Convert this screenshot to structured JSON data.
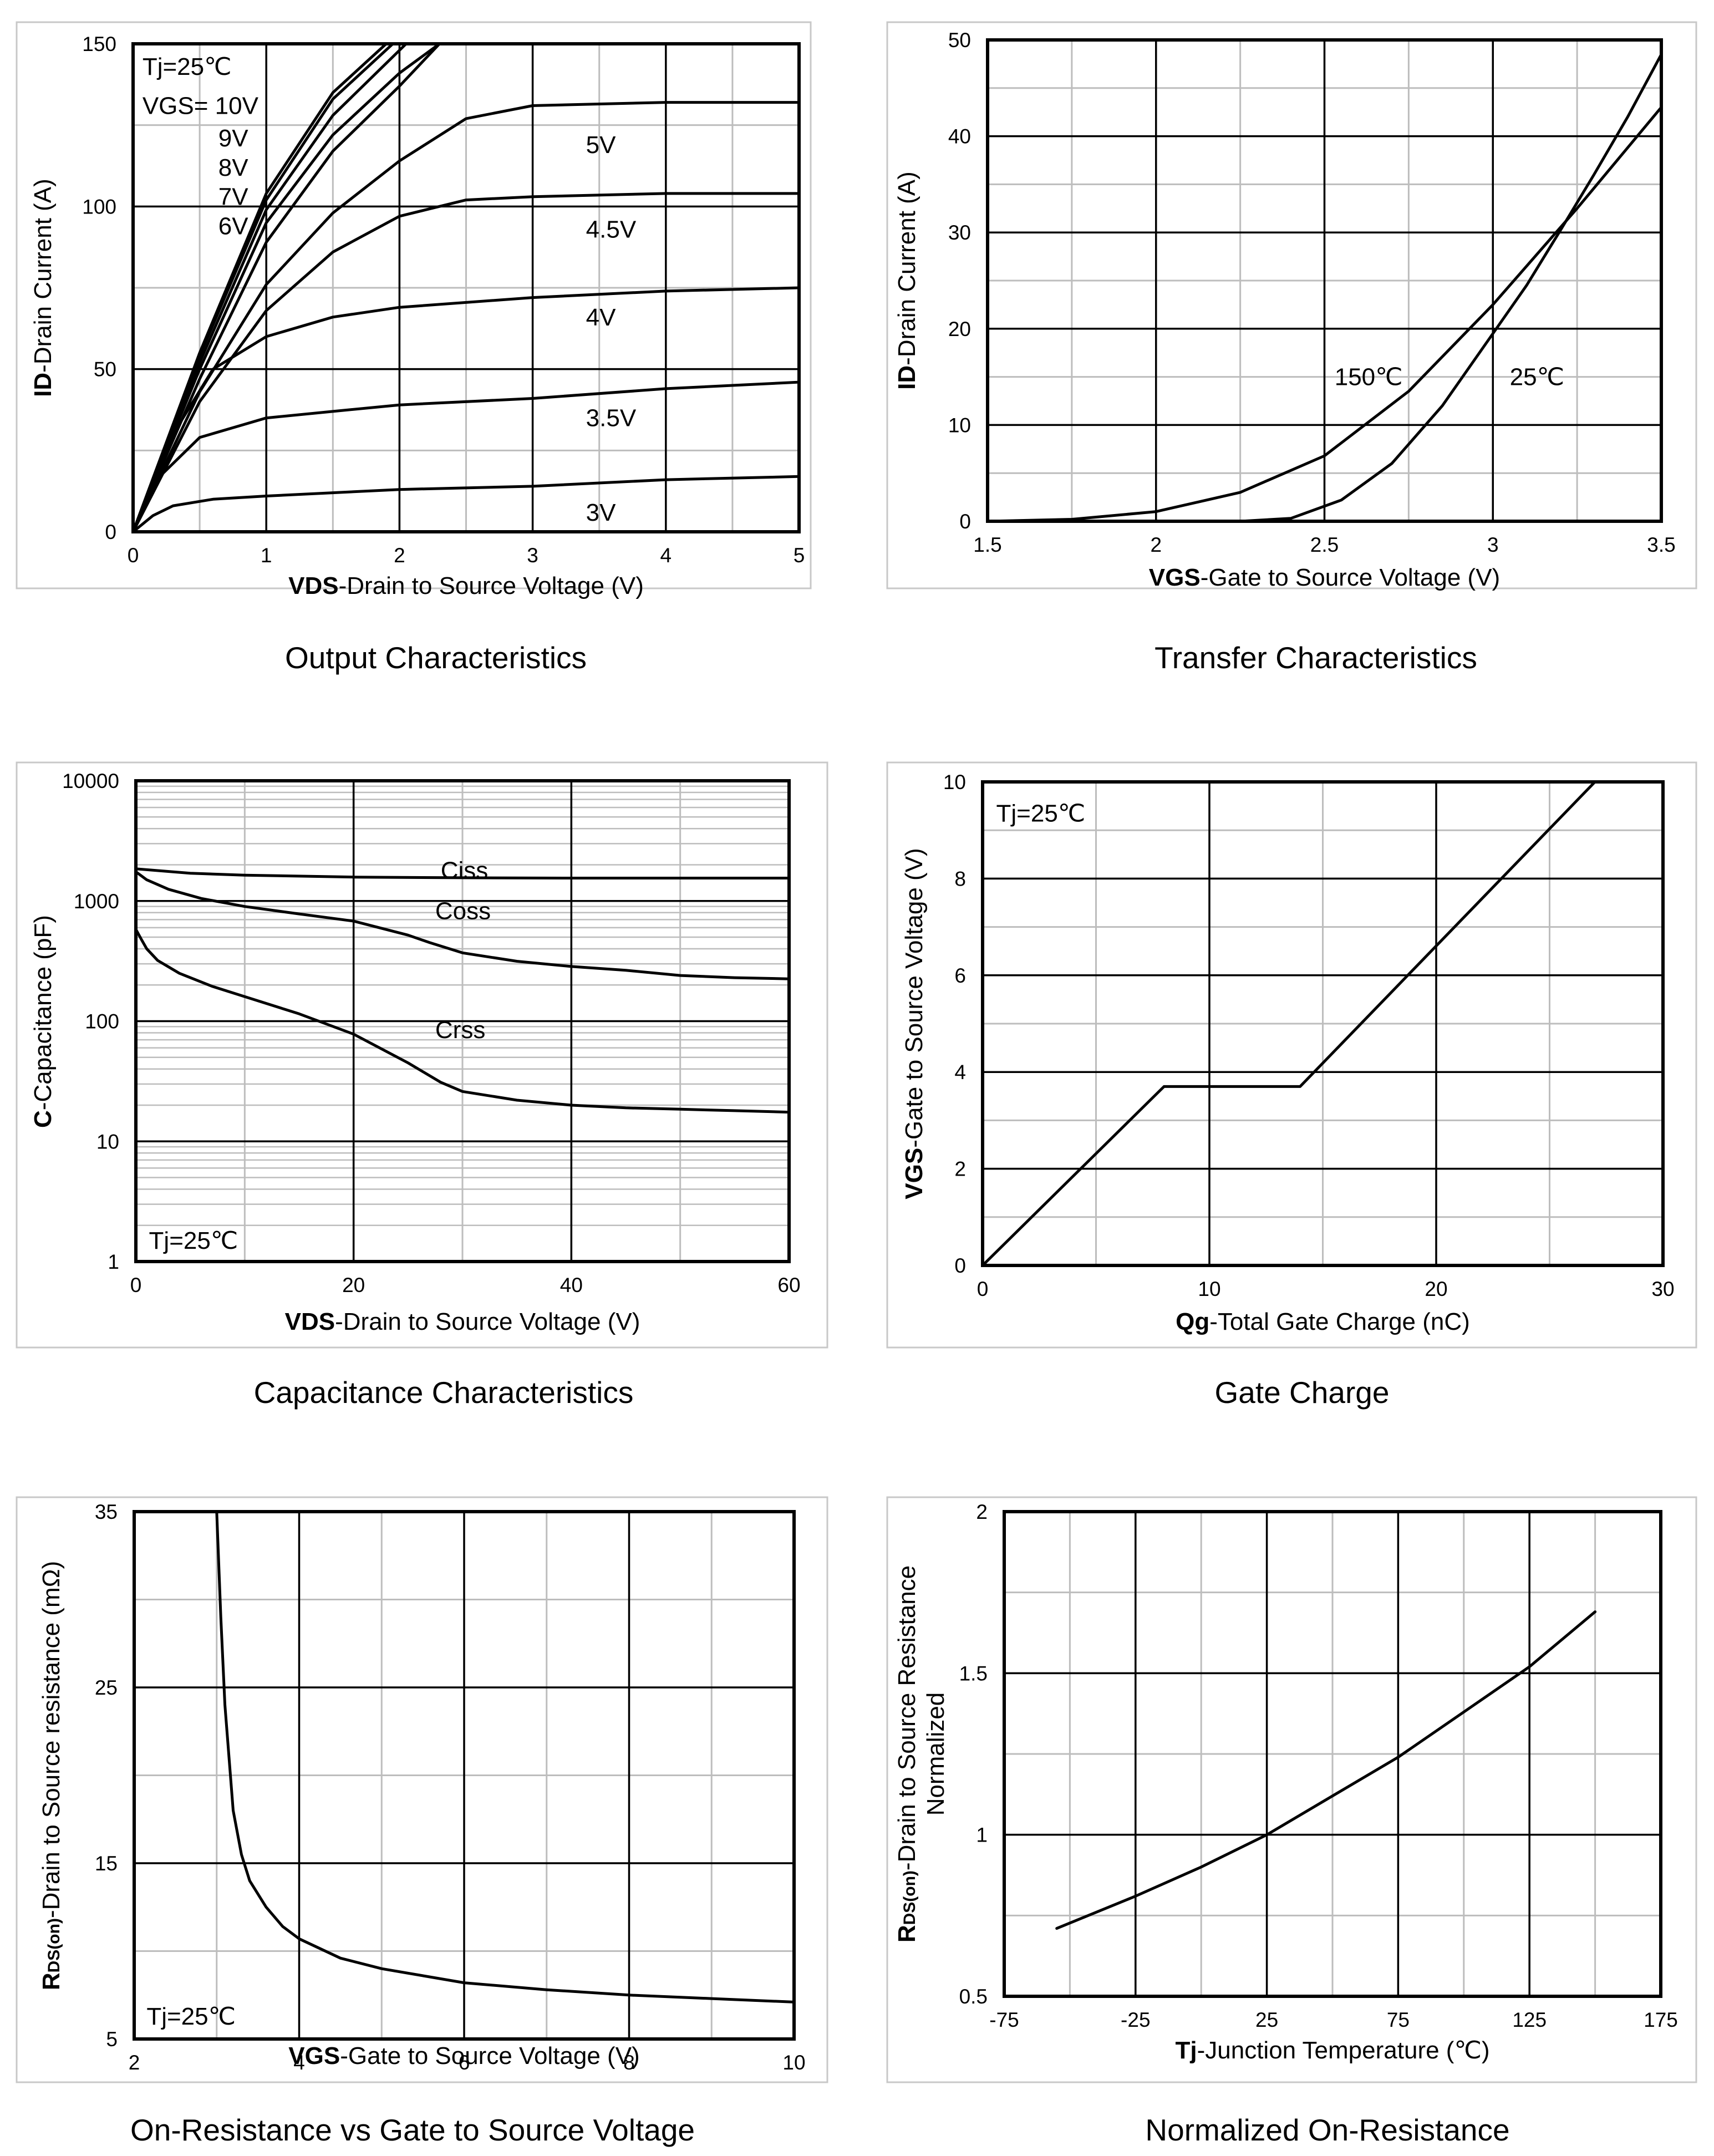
{
  "chart_data": [
    {
      "type": "line",
      "title": "Output Characteristics",
      "xlabel_bold": "VDS",
      "xlabel_rest": "-Drain to Source Voltage (V)",
      "ylabel_bold": "ID",
      "ylabel_rest": "-Drain Current (A)",
      "xlim": [
        0,
        5
      ],
      "ylim": [
        0,
        150
      ],
      "xticks": [
        0,
        1,
        2,
        3,
        4,
        5
      ],
      "yticks": [
        0,
        50,
        100,
        150
      ],
      "xticklabels": [
        "0",
        "1",
        "2",
        "3",
        "4",
        "5"
      ],
      "yticklabels": [
        "0",
        "50",
        "100",
        "150"
      ],
      "grid": true,
      "annotations": [
        {
          "text": "Tj=25℃",
          "x": 0.07,
          "y": 143
        },
        {
          "text": "VGS= 10V",
          "x": 0.07,
          "y": 131
        },
        {
          "text": "9V",
          "x": 0.64,
          "y": 121
        },
        {
          "text": "8V",
          "x": 0.64,
          "y": 112
        },
        {
          "text": "7V",
          "x": 0.64,
          "y": 103
        },
        {
          "text": "6V",
          "x": 0.64,
          "y": 94
        },
        {
          "text": "5V",
          "x": 3.4,
          "y": 119
        },
        {
          "text": "4.5V",
          "x": 3.4,
          "y": 93
        },
        {
          "text": "4V",
          "x": 3.4,
          "y": 66
        },
        {
          "text": "3.5V",
          "x": 3.4,
          "y": 35
        },
        {
          "text": "3V",
          "x": 3.4,
          "y": 6
        }
      ],
      "series": [
        {
          "name": "VGS=10V",
          "x": [
            0,
            0.5,
            1.0,
            1.5,
            1.9
          ],
          "y": [
            0,
            55,
            104,
            135,
            150
          ]
        },
        {
          "name": "VGS=9V",
          "x": [
            0,
            0.5,
            1.0,
            1.5,
            1.95
          ],
          "y": [
            0,
            54,
            102,
            133,
            150
          ]
        },
        {
          "name": "VGS=8V",
          "x": [
            0,
            0.5,
            1.0,
            1.5,
            2.05
          ],
          "y": [
            0,
            52,
            99,
            128,
            150
          ]
        },
        {
          "name": "VGS=7V",
          "x": [
            0,
            0.5,
            1.0,
            1.5,
            2.0,
            2.3
          ],
          "y": [
            0,
            50,
            95,
            122,
            141,
            150
          ]
        },
        {
          "name": "VGS=6V",
          "x": [
            0,
            0.5,
            1.0,
            1.5,
            2.0,
            2.3
          ],
          "y": [
            0,
            47,
            89,
            117,
            137,
            150
          ]
        },
        {
          "name": "VGS=5V",
          "x": [
            0,
            0.5,
            1.0,
            1.5,
            2.0,
            2.5,
            3.0,
            4.0,
            5.0
          ],
          "y": [
            0,
            43,
            76,
            98,
            114,
            127,
            131,
            132,
            132
          ]
        },
        {
          "name": "VGS=4.5V",
          "x": [
            0,
            0.5,
            1.0,
            1.5,
            2.0,
            2.5,
            3.0,
            4.0,
            5.0
          ],
          "y": [
            0,
            40,
            68,
            86,
            97,
            102,
            103,
            104,
            104
          ]
        },
        {
          "name": "VGS=4V",
          "x": [
            0,
            0.3,
            0.6,
            1.0,
            1.5,
            2.0,
            3.0,
            4.0,
            5.0
          ],
          "y": [
            0,
            30,
            50,
            60,
            66,
            69,
            72,
            74,
            75
          ]
        },
        {
          "name": "VGS=3.5V",
          "x": [
            0,
            0.2,
            0.5,
            1.0,
            1.5,
            2.0,
            3.0,
            4.0,
            5.0
          ],
          "y": [
            0,
            17,
            29,
            35,
            37,
            39,
            41,
            44,
            46
          ]
        },
        {
          "name": "VGS=3V",
          "x": [
            0,
            0.15,
            0.3,
            0.6,
            1.0,
            2.0,
            3.0,
            4.0,
            5.0
          ],
          "y": [
            0,
            5,
            8,
            10,
            11,
            13,
            14,
            16,
            17
          ]
        }
      ]
    },
    {
      "type": "line",
      "title": "Transfer Characteristics",
      "xlabel_bold": "VGS",
      "xlabel_rest": "-Gate to Source Voltage (V)",
      "ylabel_bold": "ID",
      "ylabel_rest": "-Drain Current (A)",
      "xlim": [
        1.5,
        3.5
      ],
      "ylim": [
        0,
        50
      ],
      "xticks": [
        1.5,
        2,
        2.5,
        3,
        3.5
      ],
      "yticks": [
        0,
        10,
        20,
        30,
        40,
        50
      ],
      "xticklabels": [
        "1.5",
        "2",
        "2.5",
        "3",
        "3.5"
      ],
      "yticklabels": [
        "0",
        "10",
        "20",
        "30",
        "40",
        "50"
      ],
      "grid": true,
      "annotations": [
        {
          "text": "150℃",
          "x": 2.53,
          "y": 15
        },
        {
          "text": "25℃",
          "x": 3.05,
          "y": 15
        }
      ],
      "series": [
        {
          "name": "150℃",
          "x": [
            1.5,
            1.75,
            2.0,
            2.25,
            2.5,
            2.75,
            3.0,
            3.25,
            3.5
          ],
          "y": [
            0,
            0.2,
            1.0,
            3.0,
            6.8,
            13.5,
            22.5,
            32.5,
            43
          ]
        },
        {
          "name": "25℃",
          "x": [
            1.5,
            2.25,
            2.4,
            2.55,
            2.7,
            2.85,
            3.0,
            3.1,
            3.2,
            3.3,
            3.4,
            3.5
          ],
          "y": [
            0,
            0,
            0.3,
            2.2,
            6.0,
            12.0,
            19.5,
            24.5,
            30.2,
            36.0,
            42.0,
            48.5
          ]
        }
      ]
    },
    {
      "type": "line",
      "title": "Capacitance Characteristics",
      "xlabel_bold": "VDS",
      "xlabel_rest": "-Drain to Source Voltage (V)",
      "ylabel_bold": "C",
      "ylabel_rest": "-Capacitance (pF)",
      "yscale": "log",
      "xlim": [
        0,
        60
      ],
      "ylim": [
        1,
        10000
      ],
      "xticks": [
        0,
        20,
        40,
        60
      ],
      "yticks": [
        1,
        10,
        100,
        1000,
        10000
      ],
      "xticklabels": [
        "0",
        "20",
        "40",
        "60"
      ],
      "yticklabels": [
        "1",
        "10",
        "100",
        "1000",
        "10000"
      ],
      "grid": true,
      "annotations": [
        {
          "text": "Tj=25℃",
          "x": 1.2,
          "y": 1.5
        },
        {
          "text": "Ciss",
          "x": 28,
          "y": 1800
        },
        {
          "text": "Coss",
          "x": 27.5,
          "y": 830
        },
        {
          "text": "Crss",
          "x": 27.5,
          "y": 85
        }
      ],
      "series": [
        {
          "name": "Ciss",
          "x": [
            0,
            5,
            10,
            20,
            30,
            40,
            50,
            60
          ],
          "y": [
            1850,
            1700,
            1640,
            1580,
            1560,
            1550,
            1550,
            1550
          ]
        },
        {
          "name": "Coss",
          "x": [
            0,
            1,
            3,
            6,
            10,
            15,
            20,
            25,
            27,
            30,
            35,
            40,
            45,
            50,
            55,
            60
          ],
          "y": [
            1750,
            1500,
            1250,
            1050,
            900,
            780,
            680,
            520,
            450,
            370,
            315,
            285,
            265,
            240,
            230,
            225
          ]
        },
        {
          "name": "Crss",
          "x": [
            0,
            0.5,
            1,
            2,
            4,
            7,
            10,
            15,
            20,
            25,
            28,
            30,
            35,
            40,
            45,
            50,
            55,
            60
          ],
          "y": [
            580,
            480,
            400,
            320,
            250,
            195,
            160,
            115,
            78,
            45,
            31,
            26,
            22,
            20,
            19,
            18.5,
            18,
            17.5
          ]
        }
      ]
    },
    {
      "type": "line",
      "title": "Gate Charge",
      "xlabel_bold": "Qg",
      "xlabel_rest": "-Total Gate Charge (nC)",
      "ylabel_bold": "VGS",
      "ylabel_rest": "-Gate to Source Voltage (V)",
      "xlim": [
        0,
        30
      ],
      "ylim": [
        0,
        10
      ],
      "xticks": [
        0,
        10,
        20,
        30
      ],
      "yticks": [
        0,
        2,
        4,
        6,
        8,
        10
      ],
      "xticklabels": [
        "0",
        "10",
        "20",
        "30"
      ],
      "yticklabels": [
        "0",
        "2",
        "4",
        "6",
        "8",
        "10"
      ],
      "grid": true,
      "annotations": [
        {
          "text": "Tj=25℃",
          "x": 0.6,
          "y": 9.35
        }
      ],
      "series": [
        {
          "name": "VGS",
          "x": [
            0,
            8,
            14,
            27
          ],
          "y": [
            0,
            3.7,
            3.7,
            10
          ]
        }
      ]
    },
    {
      "type": "line",
      "title": "On-Resistance vs Gate to Source Voltage",
      "xlabel_bold": "VGS",
      "xlabel_rest": "-Gate to Source Voltage (V)",
      "ylabel_bold": "R",
      "ylabel_sub": "DS(on)",
      "ylabel_rest": "-Drain to Source resistance (mΩ)",
      "xlim": [
        2,
        10
      ],
      "ylim": [
        5,
        35
      ],
      "xticks": [
        2,
        4,
        6,
        8,
        10
      ],
      "yticks": [
        5,
        15,
        25,
        35
      ],
      "xticklabels": [
        "2",
        "4",
        "6",
        "8",
        "10"
      ],
      "yticklabels": [
        "5",
        "15",
        "25",
        "35"
      ],
      "grid": true,
      "annotations": [
        {
          "text": "Tj=25℃",
          "x": 2.15,
          "y": 6.3
        }
      ],
      "series": [
        {
          "name": "RDS(on)",
          "x": [
            3.0,
            3.05,
            3.1,
            3.2,
            3.3,
            3.4,
            3.6,
            3.8,
            4.0,
            4.5,
            5.0,
            6.0,
            7.0,
            8.0,
            9.0,
            10.0
          ],
          "y": [
            35,
            29,
            24,
            18,
            15.5,
            14,
            12.5,
            11.4,
            10.7,
            9.6,
            9.0,
            8.2,
            7.8,
            7.5,
            7.3,
            7.1
          ]
        }
      ]
    },
    {
      "type": "line",
      "title": "Normalized On-Resistance",
      "xlabel_bold": "Tj",
      "xlabel_rest": "-Junction Temperature (℃)",
      "ylabel_bold": "R",
      "ylabel_sub": "DS(on)",
      "ylabel_rest": "-Drain to Source Resistance",
      "ylabel_line2": "Normalized",
      "xlim": [
        -75,
        175
      ],
      "ylim": [
        0.5,
        2
      ],
      "xticks": [
        -75,
        -25,
        25,
        75,
        125,
        175
      ],
      "yticks": [
        0.5,
        1,
        1.5,
        2
      ],
      "xticklabels": [
        "-75",
        "-25",
        "25",
        "75",
        "125",
        "175"
      ],
      "yticklabels": [
        "0.5",
        "1",
        "1.5",
        "2"
      ],
      "grid": true,
      "annotations": [],
      "series": [
        {
          "name": "Normalized RDS(on)",
          "x": [
            -55,
            -25,
            0,
            25,
            50,
            75,
            100,
            125,
            150
          ],
          "y": [
            0.71,
            0.81,
            0.9,
            1.0,
            1.12,
            1.24,
            1.38,
            1.52,
            1.69
          ]
        }
      ]
    }
  ]
}
